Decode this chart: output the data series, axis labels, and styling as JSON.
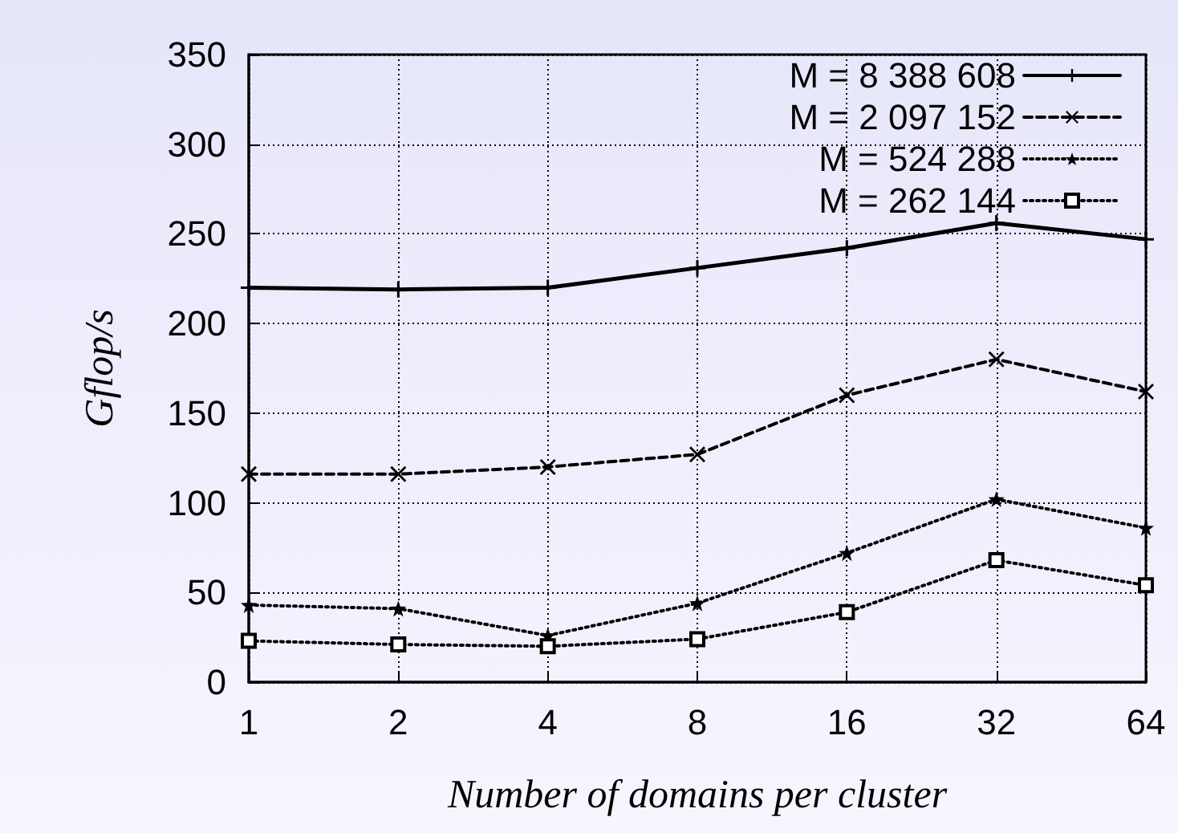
{
  "chart_data": {
    "type": "line",
    "xlabel": "Number of domains per cluster",
    "ylabel": "Gflop/s",
    "categories": [
      "1",
      "2",
      "4",
      "8",
      "16",
      "32",
      "64"
    ],
    "series": [
      {
        "name": "M = 8 388 608",
        "color": "#000000",
        "marker": "cross",
        "line_style": "solid",
        "values": [
          220,
          219,
          220,
          231,
          242,
          256,
          247
        ]
      },
      {
        "name": "M = 2 097 152",
        "color": "#000000",
        "marker": "cross",
        "line_style": "dashed",
        "values": [
          116,
          116,
          120,
          127,
          160,
          180,
          162
        ]
      },
      {
        "name": "M = 524 288",
        "color": "#000000",
        "marker": "star",
        "line_style": "dotted",
        "values": [
          43,
          41,
          26,
          44,
          72,
          102,
          86
        ]
      },
      {
        "name": "M = 262 144",
        "color": "#000000",
        "marker": "square",
        "line_style": "dotted",
        "values": [
          23,
          21,
          20,
          24,
          39,
          68,
          54
        ]
      }
    ],
    "ylim": [
      0,
      350
    ],
    "yticks": [
      0,
      50,
      100,
      150,
      200,
      250,
      300,
      350
    ],
    "grid": true,
    "legend": "top right"
  }
}
